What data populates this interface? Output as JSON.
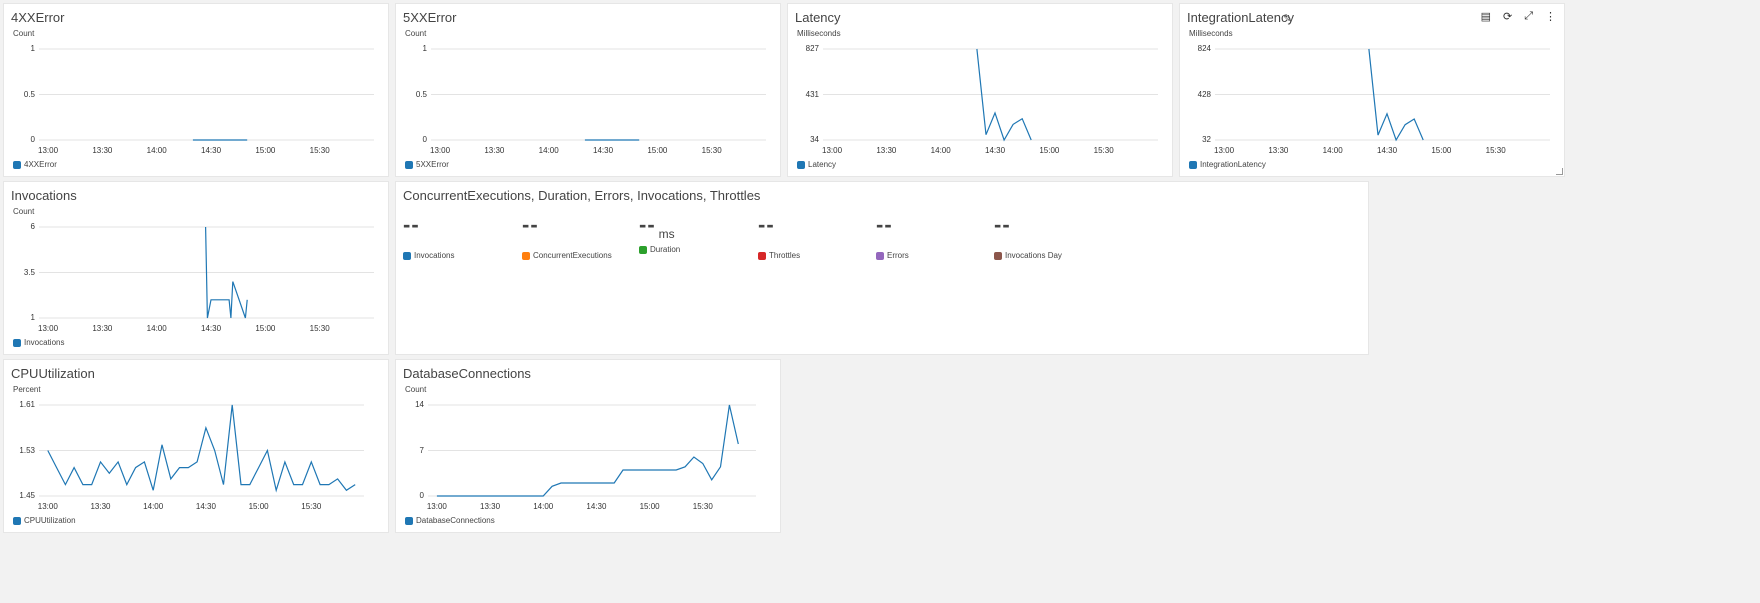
{
  "widgets": {
    "w4xx": {
      "title": "4XXError",
      "unit": "Count",
      "legend": "4XXError",
      "color": "#1f77b4",
      "yticks": [
        "1",
        "0.5",
        "0"
      ],
      "xticks": [
        "13:00",
        "13:30",
        "14:00",
        "14:30",
        "15:00",
        "15:30"
      ]
    },
    "w5xx": {
      "title": "5XXError",
      "unit": "Count",
      "legend": "5XXError",
      "color": "#1f77b4",
      "yticks": [
        "1",
        "0.5",
        "0"
      ],
      "xticks": [
        "13:00",
        "13:30",
        "14:00",
        "14:30",
        "15:00",
        "15:30"
      ]
    },
    "latency": {
      "title": "Latency",
      "unit": "Milliseconds",
      "legend": "Latency",
      "color": "#1f77b4",
      "yticks": [
        "827",
        "431",
        "34"
      ],
      "xticks": [
        "13:00",
        "13:30",
        "14:00",
        "14:30",
        "15:00",
        "15:30"
      ]
    },
    "intlat": {
      "title": "IntegrationLatency",
      "unit": "Milliseconds",
      "legend": "IntegrationLatency",
      "color": "#1f77b4",
      "yticks": [
        "824",
        "428",
        "32"
      ],
      "xticks": [
        "13:00",
        "13:30",
        "14:00",
        "14:30",
        "15:00",
        "15:30"
      ],
      "pencil": "✎",
      "tools": {
        "copy": "▤",
        "refresh": "⟳",
        "expand": "⤢",
        "menu": "⋮"
      }
    },
    "invocations": {
      "title": "Invocations",
      "unit": "Count",
      "legend": "Invocations",
      "color": "#1f77b4",
      "yticks": [
        "6",
        "3.5",
        "1"
      ],
      "xticks": [
        "13:00",
        "13:30",
        "14:00",
        "14:30",
        "15:00",
        "15:30"
      ]
    },
    "lambda": {
      "title": "ConcurrentExecutions, Duration, Errors, Invocations, Throttles",
      "stats": [
        {
          "value": "--",
          "unit": "",
          "label": "Invocations",
          "color": "#1f77b4"
        },
        {
          "value": "--",
          "unit": "",
          "label": "ConcurrentExecutions",
          "color": "#ff7f0e"
        },
        {
          "value": "--",
          "unit": "ms",
          "label": "Duration",
          "color": "#2ca02c"
        },
        {
          "value": "--",
          "unit": "",
          "label": "Throttles",
          "color": "#d62728"
        },
        {
          "value": "--",
          "unit": "",
          "label": "Errors",
          "color": "#9467bd"
        },
        {
          "value": "--",
          "unit": "",
          "label": "Invocations Day",
          "color": "#8c564b"
        }
      ]
    },
    "cpu": {
      "title": "CPUUtilization",
      "unit": "Percent",
      "legend": "CPUUtilization",
      "color": "#1f77b4",
      "yticks": [
        "1.61",
        "1.53",
        "1.45"
      ],
      "xticks": [
        "13:00",
        "13:30",
        "14:00",
        "14:30",
        "15:00",
        "15:30"
      ]
    },
    "dbconn": {
      "title": "DatabaseConnections",
      "unit": "Count",
      "legend": "DatabaseConnections",
      "color": "#1f77b4",
      "yticks": [
        "14",
        "7",
        "0"
      ],
      "xticks": [
        "13:00",
        "13:30",
        "14:00",
        "14:30",
        "15:00",
        "15:30"
      ]
    }
  },
  "chart_data": [
    {
      "id": "w4xx",
      "type": "line",
      "title": "4XXError",
      "ylabel": "Count",
      "ylim": [
        0,
        1
      ],
      "series": [
        {
          "name": "4XXError",
          "x": [
            "14:20",
            "14:25",
            "14:30",
            "14:35",
            "14:40",
            "14:45",
            "14:50"
          ],
          "values": [
            0,
            0,
            0,
            0,
            0,
            0,
            0
          ]
        }
      ]
    },
    {
      "id": "w5xx",
      "type": "line",
      "title": "5XXError",
      "ylabel": "Count",
      "ylim": [
        0,
        1
      ],
      "series": [
        {
          "name": "5XXError",
          "x": [
            "14:20",
            "14:25",
            "14:30",
            "14:35",
            "14:40",
            "14:45",
            "14:50"
          ],
          "values": [
            0,
            0,
            0,
            0,
            0,
            0,
            0
          ]
        }
      ]
    },
    {
      "id": "latency",
      "type": "line",
      "title": "Latency",
      "ylabel": "Milliseconds",
      "ylim": [
        34,
        827
      ],
      "series": [
        {
          "name": "Latency",
          "x": [
            "14:20",
            "14:25",
            "14:30",
            "14:35",
            "14:40",
            "14:45",
            "14:50"
          ],
          "values": [
            827,
            80,
            270,
            34,
            170,
            220,
            34
          ]
        }
      ]
    },
    {
      "id": "intlat",
      "type": "line",
      "title": "IntegrationLatency",
      "ylabel": "Milliseconds",
      "ylim": [
        32,
        824
      ],
      "series": [
        {
          "name": "IntegrationLatency",
          "x": [
            "14:20",
            "14:25",
            "14:30",
            "14:35",
            "14:40",
            "14:45",
            "14:50"
          ],
          "values": [
            824,
            75,
            260,
            32,
            165,
            215,
            32
          ]
        }
      ]
    },
    {
      "id": "invocations",
      "type": "line",
      "title": "Invocations",
      "ylabel": "Count",
      "ylim": [
        1,
        6
      ],
      "series": [
        {
          "name": "Invocations",
          "x": [
            "14:27",
            "14:28",
            "14:30",
            "14:40",
            "14:41",
            "14:42",
            "14:49",
            "14:50"
          ],
          "values": [
            6,
            1,
            2,
            2,
            1,
            3,
            1,
            2
          ]
        }
      ]
    },
    {
      "id": "cpu",
      "type": "line",
      "title": "CPUUtilization",
      "ylabel": "Percent",
      "ylim": [
        1.45,
        1.61
      ],
      "series": [
        {
          "name": "CPUUtilization",
          "x": [
            "13:00",
            "13:05",
            "13:10",
            "13:15",
            "13:20",
            "13:25",
            "13:30",
            "13:35",
            "13:40",
            "13:45",
            "13:50",
            "13:55",
            "14:00",
            "14:05",
            "14:10",
            "14:15",
            "14:20",
            "14:25",
            "14:30",
            "14:35",
            "14:40",
            "14:45",
            "14:50",
            "14:55",
            "15:00",
            "15:05",
            "15:10",
            "15:15",
            "15:20",
            "15:25",
            "15:30",
            "15:35",
            "15:40",
            "15:45",
            "15:50",
            "15:55"
          ],
          "values": [
            1.53,
            1.5,
            1.47,
            1.5,
            1.47,
            1.47,
            1.51,
            1.49,
            1.51,
            1.47,
            1.5,
            1.51,
            1.46,
            1.54,
            1.48,
            1.5,
            1.5,
            1.51,
            1.57,
            1.53,
            1.47,
            1.61,
            1.47,
            1.47,
            1.5,
            1.53,
            1.46,
            1.51,
            1.47,
            1.47,
            1.51,
            1.47,
            1.47,
            1.48,
            1.46,
            1.47
          ]
        }
      ]
    },
    {
      "id": "dbconn",
      "type": "line",
      "title": "DatabaseConnections",
      "ylabel": "Count",
      "ylim": [
        0,
        14
      ],
      "series": [
        {
          "name": "DatabaseConnections",
          "x": [
            "13:00",
            "13:05",
            "13:10",
            "13:15",
            "13:20",
            "13:25",
            "13:30",
            "13:35",
            "13:40",
            "13:45",
            "13:50",
            "13:55",
            "14:00",
            "14:05",
            "14:10",
            "14:15",
            "14:20",
            "14:25",
            "14:30",
            "14:35",
            "14:40",
            "14:45",
            "14:50",
            "14:55",
            "15:00",
            "15:05",
            "15:10",
            "15:15",
            "15:20",
            "15:25",
            "15:30",
            "15:35",
            "15:40",
            "15:45",
            "15:50"
          ],
          "values": [
            0,
            0,
            0,
            0,
            0,
            0,
            0,
            0,
            0,
            0,
            0,
            0,
            0,
            1.5,
            2,
            2,
            2,
            2,
            2,
            2,
            2,
            4,
            4,
            4,
            4,
            4,
            4,
            4,
            4.5,
            6,
            5,
            2.5,
            4.5,
            14,
            8
          ]
        }
      ]
    }
  ]
}
